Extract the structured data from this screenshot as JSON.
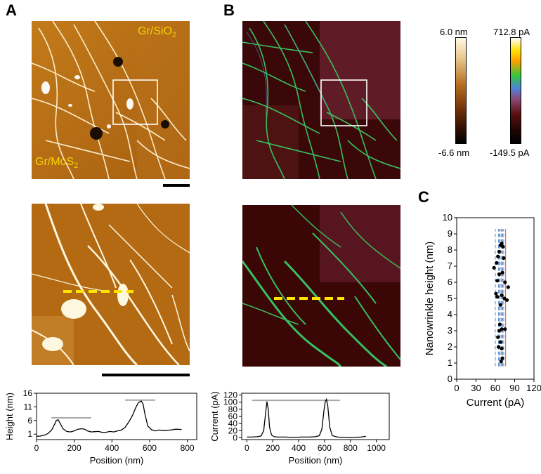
{
  "panels": {
    "a": "A",
    "b": "B",
    "c": "C"
  },
  "labels": {
    "gr_sio2": "Gr/SiO",
    "gr_sio2_sub": "2",
    "gr_mos2": "Gr/MoS",
    "gr_mos2_sub": "2"
  },
  "colorbars": {
    "height_top": "6.0 nm",
    "height_bottom": "-6.6 nm",
    "current_top": "712.8 pA",
    "current_bottom": "-149.5 pA"
  },
  "chart_data": [
    {
      "id": "height-profile",
      "type": "line",
      "xlabel": "Position (nm)",
      "ylabel": "Height (nm)",
      "xlim": [
        0,
        850
      ],
      "ylim": [
        -1,
        16
      ],
      "xticks": [
        0,
        200,
        400,
        600,
        800
      ],
      "yticks": [
        1,
        6,
        11,
        16
      ],
      "x": [
        0,
        20,
        40,
        60,
        80,
        95,
        105,
        115,
        125,
        140,
        160,
        180,
        200,
        220,
        240,
        255,
        270,
        290,
        310,
        330,
        350,
        370,
        390,
        410,
        430,
        450,
        470,
        490,
        510,
        525,
        540,
        555,
        565,
        575,
        590,
        610,
        630,
        650,
        680,
        710,
        740,
        770
      ],
      "y": [
        0.2,
        0.3,
        0.6,
        1.2,
        2.5,
        4.5,
        6.0,
        6.3,
        5.0,
        3.0,
        2.0,
        1.8,
        2.2,
        2.8,
        3.0,
        2.8,
        2.2,
        1.8,
        1.9,
        2.0,
        1.6,
        1.7,
        2.0,
        1.8,
        2.2,
        2.5,
        3.5,
        5.5,
        8.0,
        10.5,
        12.5,
        13.2,
        12.0,
        8.5,
        4.0,
        2.6,
        2.2,
        2.5,
        2.3,
        2.5,
        2.8,
        2.7
      ],
      "reference_lines": [
        {
          "y": 7.0,
          "x0": 80,
          "x1": 290
        },
        {
          "y": 13.5,
          "x0": 470,
          "x1": 630
        }
      ]
    },
    {
      "id": "current-profile",
      "type": "line",
      "xlabel": "Position (nm)",
      "ylabel": "Current (pA)",
      "xlim": [
        -40,
        1100
      ],
      "ylim": [
        -5,
        125
      ],
      "xticks": [
        0,
        200,
        400,
        600,
        800,
        1000
      ],
      "yticks": [
        0,
        20,
        40,
        60,
        80,
        100,
        120
      ],
      "x": [
        0,
        40,
        80,
        110,
        130,
        145,
        155,
        165,
        175,
        190,
        210,
        240,
        300,
        360,
        420,
        480,
        530,
        560,
        580,
        595,
        605,
        615,
        625,
        640,
        660,
        700,
        760,
        820,
        880,
        920
      ],
      "y": [
        2,
        2,
        3,
        5,
        20,
        70,
        102,
        80,
        30,
        8,
        3,
        2,
        2,
        1,
        2,
        2,
        3,
        6,
        25,
        75,
        100,
        108,
        90,
        30,
        6,
        2,
        1,
        1,
        2,
        4
      ],
      "reference_lines": [
        {
          "y": 105,
          "x0": 40,
          "x1": 720
        }
      ]
    },
    {
      "id": "nanowrinkle-scatter",
      "type": "scatter",
      "xlabel": "Current (pA)",
      "ylabel": "Nanowrinkle height (nm)",
      "xlim": [
        0,
        120
      ],
      "ylim": [
        0,
        10
      ],
      "xticks": [
        0,
        30,
        60,
        90,
        120
      ],
      "yticks": [
        0,
        1,
        2,
        3,
        4,
        5,
        6,
        7,
        8,
        9,
        10
      ],
      "points": [
        [
          58,
          6.9
        ],
        [
          62,
          7.2
        ],
        [
          64,
          7.6
        ],
        [
          66,
          7.9
        ],
        [
          68,
          8.3
        ],
        [
          70,
          8.4
        ],
        [
          72,
          8.2
        ],
        [
          73,
          7.5
        ],
        [
          66,
          6.5
        ],
        [
          71,
          6.6
        ],
        [
          75,
          6.0
        ],
        [
          63,
          6.1
        ],
        [
          80,
          5.7
        ],
        [
          61,
          5.3
        ],
        [
          63,
          5.1
        ],
        [
          70,
          5.2
        ],
        [
          68,
          4.6
        ],
        [
          74,
          5.0
        ],
        [
          78,
          4.9
        ],
        [
          66,
          3.0
        ],
        [
          70,
          3.1
        ],
        [
          75,
          3.1
        ],
        [
          64,
          2.6
        ],
        [
          68,
          2.3
        ],
        [
          65,
          2.0
        ],
        [
          70,
          1.9
        ],
        [
          69,
          1.1
        ],
        [
          71,
          1.3
        ],
        [
          67,
          3.4
        ]
      ],
      "vlines": [
        {
          "x": 60,
          "color": "#4a90d9"
        },
        {
          "x": 65,
          "color": "#4a90d9"
        },
        {
          "x": 67,
          "color": "#1f3f7a"
        },
        {
          "x": 69,
          "color": "#4a90d9"
        },
        {
          "x": 71,
          "color": "#1f3f7a"
        },
        {
          "x": 73,
          "color": "#4a90d9"
        },
        {
          "x": 76,
          "color": "#e05050"
        }
      ]
    }
  ]
}
